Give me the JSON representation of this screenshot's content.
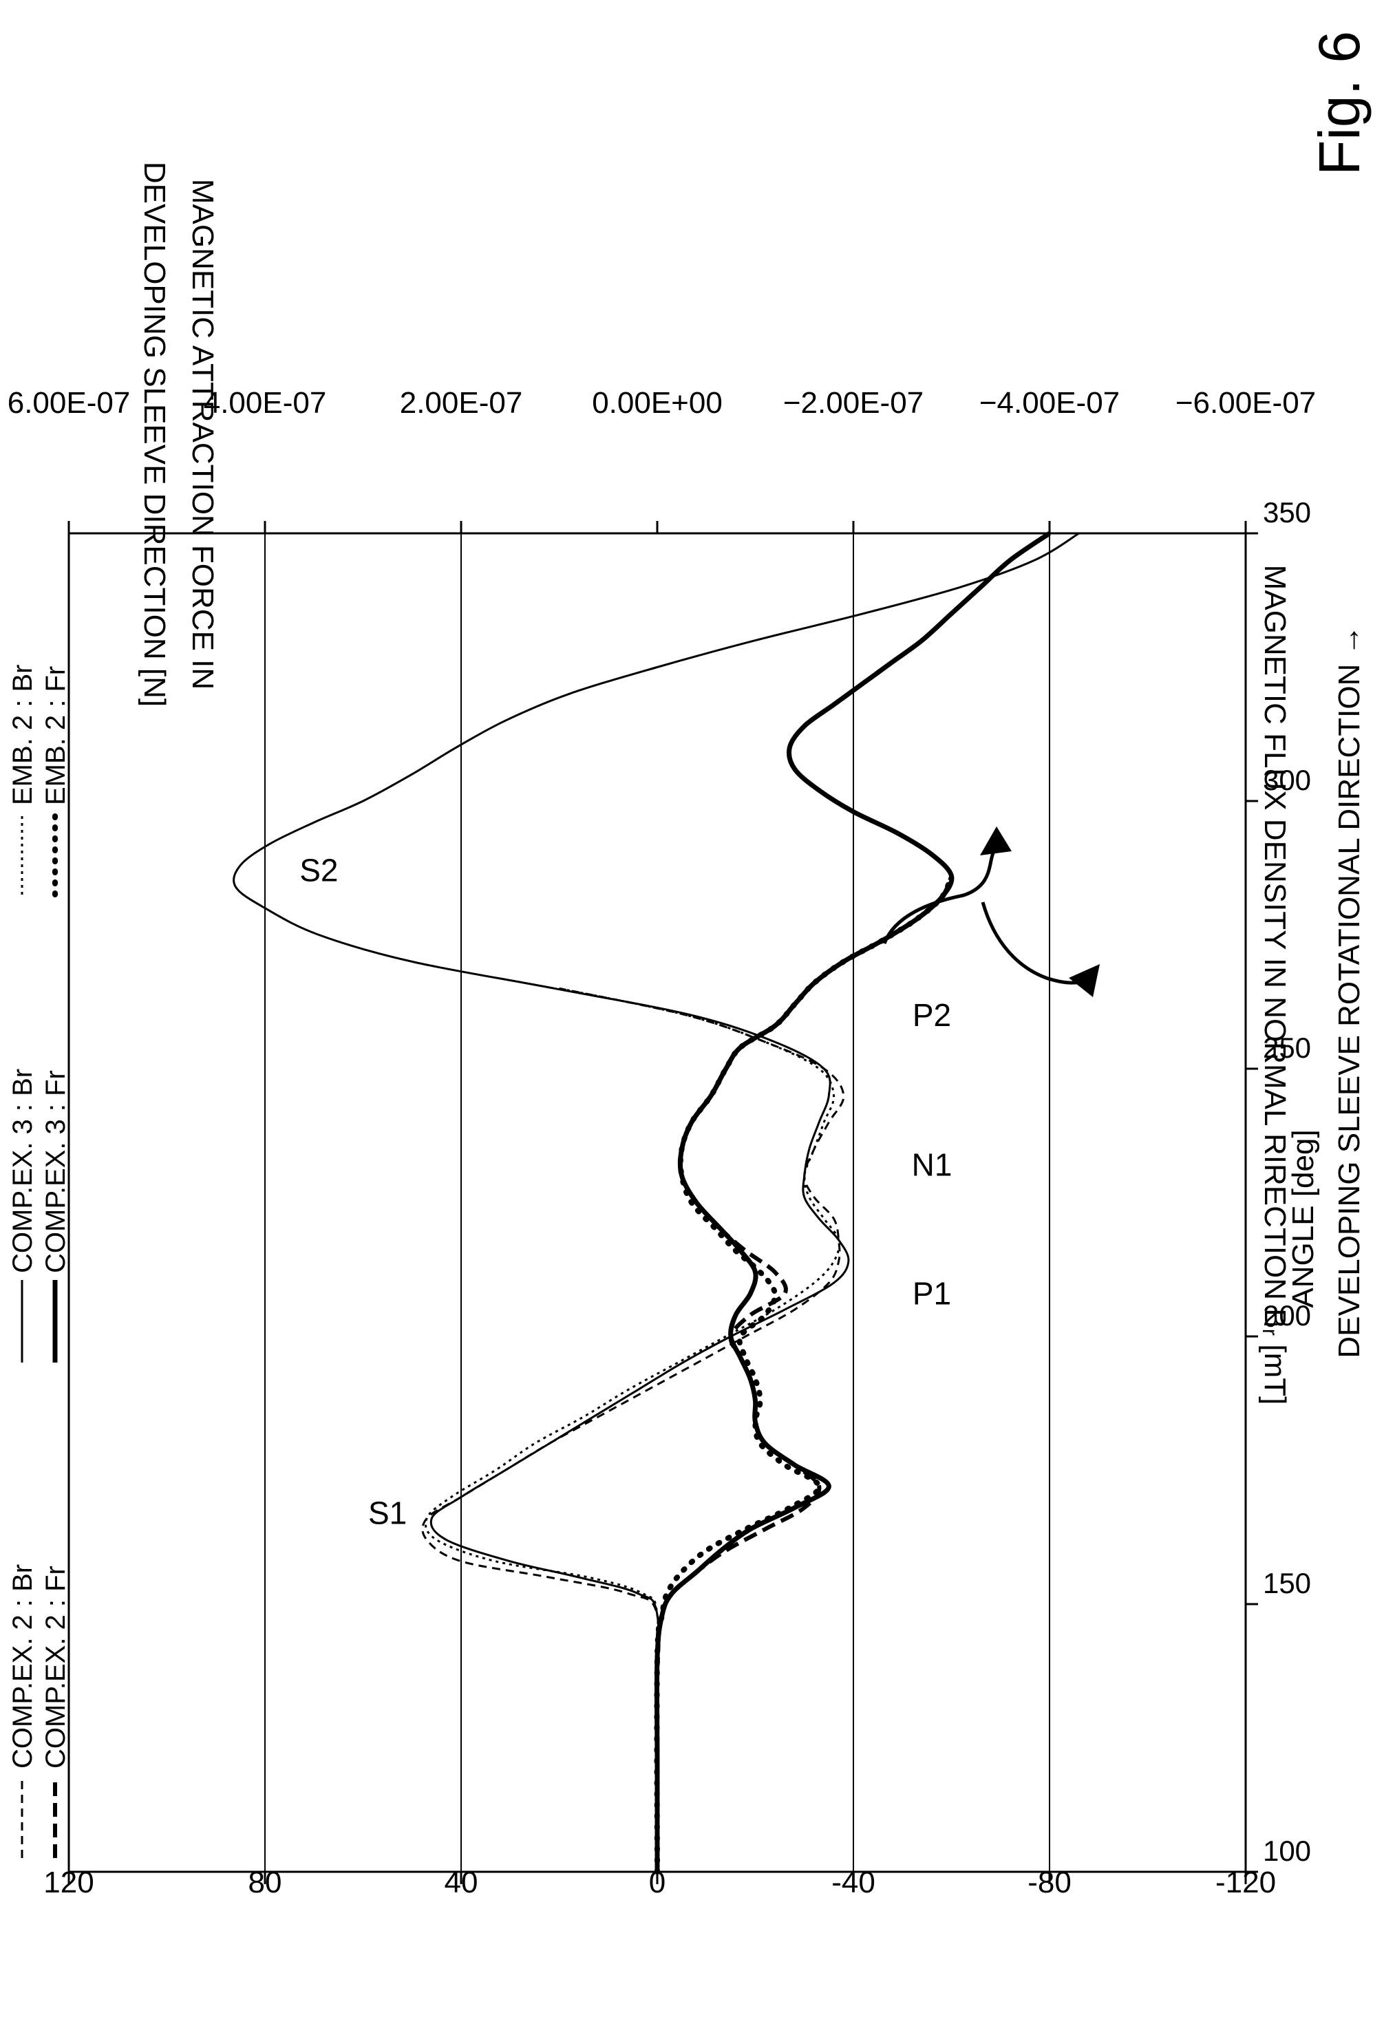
{
  "figure_label": "Fig. 6",
  "chart_data": {
    "type": "line",
    "xlabel": "ANGLE [deg]",
    "xlabel2": "DEVELOPING SLEEVE ROTATIONAL DIRECTION →",
    "ylabel": "MAGNETIC FLUX DENSITY IN NORMAL RIRECTION Bᵣ [mT]",
    "y2label_line1": "MAGNETIC ATTRACTION FORCE IN",
    "y2label_line2": "DEVELOPING SLEEVE DIRECTION [N]",
    "xlim": [
      100,
      350
    ],
    "ylim": [
      -120,
      120
    ],
    "y2lim": [
      -6e-07,
      6e-07
    ],
    "xticks": [
      100,
      150,
      200,
      250,
      300,
      350
    ],
    "yticks": [
      120,
      80,
      40,
      0,
      -40,
      -80,
      -120
    ],
    "y2ticks": [
      "6.00E-07",
      "4.00E-07",
      "2.00E-07",
      "0.00E+00",
      "-2.00E-07",
      "-4.00E-07",
      "-6.00E-07"
    ],
    "y2tick_values": [
      6e-07,
      4e-07,
      2e-07,
      0,
      -2e-07,
      -4e-07,
      -6e-07
    ],
    "gridlines_y": [
      80,
      40,
      -40,
      -80
    ],
    "legend": [
      {
        "label": "COMP.EX. 2 : Br",
        "style": "dash-thin"
      },
      {
        "label": "COMP.EX. 2 : Fr",
        "style": "dash-thick"
      },
      {
        "label": "COMP.EX. 3 : Br",
        "style": "solid-thin"
      },
      {
        "label": "COMP.EX. 3 : Fr",
        "style": "solid-thick"
      },
      {
        "label": "EMB. 2 : Br",
        "style": "dot-thin"
      },
      {
        "label": "EMB. 2 : Fr",
        "style": "dot-thick"
      }
    ],
    "annotations": [
      {
        "text": "S1",
        "x": 165,
        "y": 55
      },
      {
        "text": "S2",
        "x": 285,
        "y": 69
      },
      {
        "text": "P1",
        "x": 206,
        "y": -56
      },
      {
        "text": "N1",
        "x": 230,
        "y": -56
      },
      {
        "text": "P2",
        "x": 258,
        "y": -56
      }
    ],
    "series": [
      {
        "name": "COMP.EX. 3 : Br",
        "style": "solid-thin",
        "axis": "left",
        "x": [
          100,
          130,
          148,
          152,
          155,
          158,
          162,
          166,
          170,
          175,
          180,
          185,
          190,
          195,
          200,
          205,
          210,
          214,
          218,
          222,
          226,
          230,
          235,
          240,
          245,
          250,
          255,
          260,
          265,
          270,
          275,
          280,
          284,
          288,
          292,
          296,
          300,
          305,
          310,
          315,
          320,
          325,
          330,
          335,
          340,
          345,
          350
        ],
        "y": [
          0,
          0,
          0,
          4,
          16,
          30,
          43,
          46,
          40,
          31,
          22,
          13,
          4,
          -5,
          -15,
          -26,
          -36,
          -39,
          -37,
          -33,
          -30,
          -30,
          -31,
          -33,
          -35,
          -34,
          -24,
          -7,
          21,
          50,
          69,
          80,
          86,
          85,
          79,
          70,
          60,
          50,
          41,
          31,
          18,
          0,
          -20,
          -42,
          -62,
          -77,
          -86
        ]
      },
      {
        "name": "COMP.EX. 2 : Br",
        "style": "dash-thin",
        "axis": "left",
        "x": [
          100,
          130,
          148,
          152,
          155,
          158,
          162,
          166,
          170,
          175,
          180,
          185,
          190,
          195,
          200,
          205,
          210,
          214,
          218,
          222,
          226,
          230,
          235,
          240,
          245,
          250,
          255,
          260,
          265
        ],
        "y": [
          0,
          0,
          0,
          6,
          22,
          40,
          47,
          47,
          40,
          31,
          22,
          12,
          2,
          -8,
          -18,
          -28,
          -35,
          -37,
          -37,
          -36,
          -32,
          -30,
          -32,
          -35,
          -38,
          -34,
          -22,
          -6,
          20
        ]
      },
      {
        "name": "EMB. 2 : Br",
        "style": "dot-thin",
        "axis": "left",
        "x": [
          100,
          130,
          148,
          152,
          155,
          158,
          162,
          166,
          170,
          175,
          180,
          185,
          190,
          195,
          200,
          205,
          210,
          214,
          218,
          222,
          226,
          230,
          235,
          240,
          245,
          250,
          255,
          260,
          265
        ],
        "y": [
          0,
          0,
          0,
          3,
          14,
          33,
          45,
          47,
          42,
          33,
          25,
          15,
          6,
          -4,
          -14,
          -24,
          -32,
          -36,
          -37,
          -34,
          -31,
          -30,
          -32,
          -34,
          -36,
          -33,
          -22,
          -6,
          20
        ]
      },
      {
        "name": "COMP.EX. 3 : Fr",
        "style": "solid-thick",
        "axis": "right",
        "x": [
          100,
          120,
          140,
          148,
          152,
          156,
          160,
          164,
          168,
          172,
          176,
          180,
          184,
          188,
          192,
          196,
          200,
          204,
          208,
          212,
          216,
          220,
          225,
          230,
          235,
          240,
          245,
          250,
          254,
          258,
          262,
          266,
          270,
          274,
          278,
          282,
          286,
          290,
          294,
          298,
          302,
          306,
          310,
          314,
          318,
          322,
          326,
          330,
          335,
          340,
          345,
          350
        ],
        "y": [
          0,
          0,
          0,
          -1,
          -3,
          -8,
          -13,
          -19,
          -28,
          -35,
          -28,
          -22,
          -20,
          -20,
          -19,
          -17,
          -15,
          -16,
          -19,
          -20,
          -17,
          -13,
          -8,
          -5,
          -5,
          -7,
          -11,
          -14,
          -17,
          -24,
          -28,
          -32,
          -38,
          -46,
          -53,
          -58,
          -60,
          -56,
          -49,
          -40,
          -33,
          -28,
          -27,
          -30,
          -36,
          -42,
          -48,
          -54,
          -60,
          -66,
          -72,
          -80
        ]
      },
      {
        "name": "COMP.EX. 2 : Fr",
        "style": "dash-thick",
        "axis": "right",
        "x": [
          100,
          140,
          148,
          152,
          156,
          160,
          164,
          168,
          172,
          176,
          180,
          184,
          188,
          192,
          196,
          200,
          204,
          208,
          212,
          216,
          220,
          225,
          230,
          235,
          240,
          245,
          250,
          254,
          258,
          262,
          266,
          270,
          274,
          278,
          282,
          286
        ],
        "y": [
          0,
          0,
          -1,
          -3,
          -8,
          -14,
          -22,
          -30,
          -33,
          -28,
          -22,
          -20,
          -20,
          -19,
          -17,
          -15,
          -19,
          -26,
          -24,
          -18,
          -13,
          -8,
          -5,
          -5,
          -7,
          -11,
          -14,
          -17,
          -24,
          -28,
          -32,
          -38,
          -46,
          -53,
          -58,
          -60
        ]
      },
      {
        "name": "EMB. 2 : Fr",
        "style": "dot-thick",
        "axis": "right",
        "x": [
          100,
          140,
          148,
          152,
          156,
          160,
          164,
          168,
          172,
          176,
          180,
          184,
          188,
          192,
          196,
          200,
          204,
          208,
          212,
          216,
          220,
          225,
          230,
          235,
          240,
          245,
          250,
          254,
          258,
          262,
          266,
          270,
          274,
          278,
          282,
          286
        ],
        "y": [
          0,
          0,
          -1,
          -2,
          -5,
          -10,
          -18,
          -27,
          -33,
          -26,
          -21,
          -20,
          -21,
          -20,
          -18,
          -17,
          -22,
          -24,
          -21,
          -16,
          -12,
          -7,
          -5,
          -5,
          -7,
          -11,
          -14,
          -17,
          -24,
          -28,
          -32,
          -38,
          -46,
          -53,
          -58,
          -60
        ]
      }
    ]
  }
}
